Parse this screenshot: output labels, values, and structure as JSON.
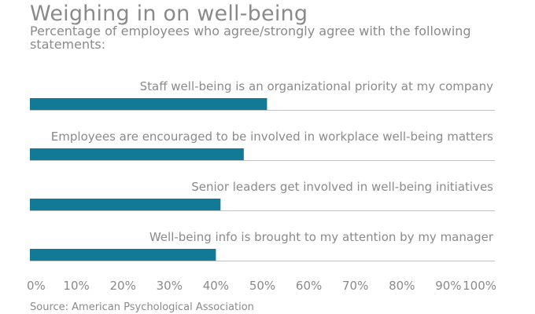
{
  "title": "Weighing in on well-being",
  "subtitle": "Percentage of employees who agree/strongly agree with the following statements:",
  "source": "Source: American Psychological Association",
  "colors": {
    "bar": "#127a96",
    "text": "#8a8a8a",
    "rule": "#c0c0c0"
  },
  "chart_data": {
    "type": "bar",
    "orientation": "horizontal",
    "categories": [
      "Staff well-being is an organizational priority at my company",
      "Employees are encouraged to be involved in workplace well-being matters",
      "Senior leaders get involved in well-being initiatives",
      "Well-being info is brought to my attention by my manager"
    ],
    "values": [
      51,
      46,
      41,
      40
    ],
    "xlim": [
      0,
      100
    ],
    "xticks": [
      "0%",
      "10%",
      "20%",
      "30%",
      "40%",
      "50%",
      "60%",
      "70%",
      "80%",
      "90%",
      "100%"
    ],
    "title": "Weighing in on well-being",
    "subtitle": "Percentage of employees who agree/strongly agree with the following statements:",
    "xlabel": "",
    "ylabel": "",
    "grid": false,
    "legend": "none"
  }
}
